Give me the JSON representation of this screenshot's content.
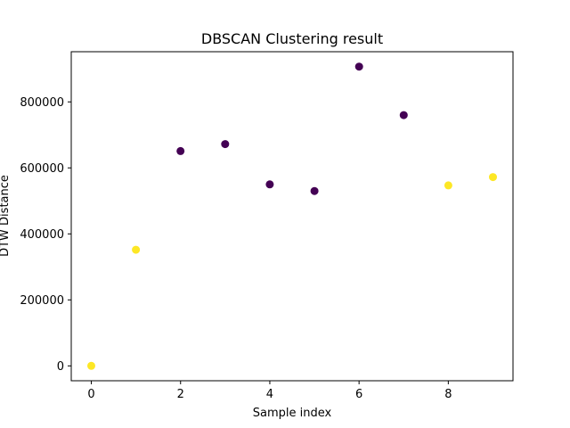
{
  "chart_data": {
    "type": "scatter",
    "title": "DBSCAN Clustering result",
    "xlabel": "Sample index",
    "ylabel": "DTW Distance",
    "xlim": [
      -0.45,
      9.45
    ],
    "ylim": [
      -45000,
      952000
    ],
    "xticks": [
      0,
      2,
      4,
      6,
      8
    ],
    "yticks": [
      0,
      200000,
      400000,
      600000,
      800000
    ],
    "xtick_labels": [
      "0",
      "2",
      "4",
      "6",
      "8"
    ],
    "ytick_labels": [
      "0",
      "200000",
      "400000",
      "600000",
      "800000"
    ],
    "grid": false,
    "legend": "none",
    "cluster_colors": {
      "cluster-0": "#440154",
      "noise": "#fde725"
    },
    "points": [
      {
        "x": 0,
        "y": 0,
        "cluster": "noise"
      },
      {
        "x": 1,
        "y": 352000,
        "cluster": "noise"
      },
      {
        "x": 2,
        "y": 651000,
        "cluster": "cluster-0"
      },
      {
        "x": 3,
        "y": 672000,
        "cluster": "cluster-0"
      },
      {
        "x": 4,
        "y": 550000,
        "cluster": "cluster-0"
      },
      {
        "x": 5,
        "y": 530000,
        "cluster": "cluster-0"
      },
      {
        "x": 6,
        "y": 907000,
        "cluster": "cluster-0"
      },
      {
        "x": 7,
        "y": 760000,
        "cluster": "cluster-0"
      },
      {
        "x": 8,
        "y": 547000,
        "cluster": "noise"
      },
      {
        "x": 9,
        "y": 572000,
        "cluster": "noise"
      }
    ]
  }
}
